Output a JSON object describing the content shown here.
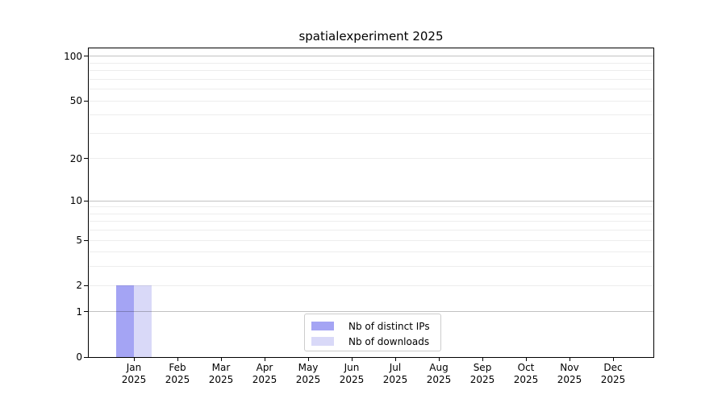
{
  "chart_data": {
    "type": "bar",
    "title": "spatialexperiment 2025",
    "categories": [
      "Jan",
      "Feb",
      "Mar",
      "Apr",
      "May",
      "Jun",
      "Jul",
      "Aug",
      "Sep",
      "Oct",
      "Nov",
      "Dec"
    ],
    "x_sublabel": "2025",
    "series": [
      {
        "name": "Nb of distinct IPs",
        "color": "#a4a4f4",
        "values": [
          2,
          0,
          0,
          0,
          0,
          0,
          0,
          0,
          0,
          0,
          0,
          0
        ]
      },
      {
        "name": "Nb of downloads",
        "color": "#d9d9f8",
        "values": [
          2,
          0,
          0,
          0,
          0,
          0,
          0,
          0,
          0,
          0,
          0,
          0
        ]
      }
    ],
    "y_ticks": [
      0,
      1,
      2,
      5,
      10,
      20,
      50,
      100
    ],
    "y_scale": "log10(1+y)",
    "ylim": [
      0,
      113
    ],
    "grid_major": [
      1,
      10,
      100
    ],
    "grid_minor": [
      2,
      3,
      4,
      5,
      6,
      7,
      8,
      9,
      20,
      30,
      40,
      50,
      60,
      70,
      80,
      90
    ],
    "grid": "on",
    "legend_position": "lower center",
    "xlabel": "",
    "ylabel": ""
  },
  "colors": {
    "background": "#ffffff",
    "axis": "#000000",
    "grid_major": "rgba(0,0,0,0.24)",
    "grid_minor": "rgba(0,0,0,0.07)",
    "legend_border": "#cccccc",
    "text": "#000000"
  }
}
